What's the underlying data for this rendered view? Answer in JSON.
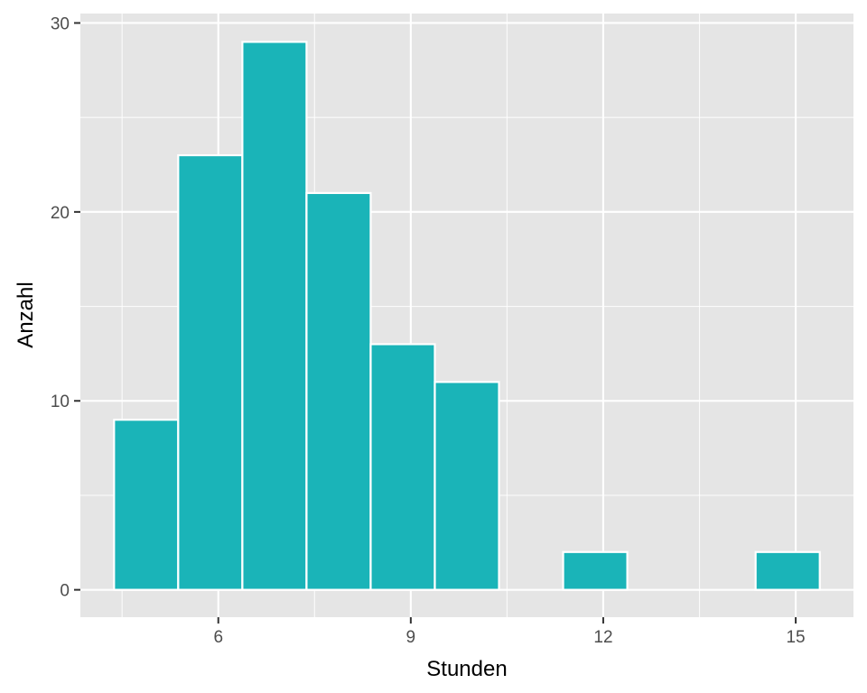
{
  "chart_data": {
    "type": "bar",
    "subtype": "histogram",
    "title": "",
    "xlabel": "Stunden",
    "ylabel": "Anzahl",
    "bin_width": 1,
    "bins": [
      {
        "x_start": 4.375,
        "x_end": 5.375,
        "count": 9
      },
      {
        "x_start": 5.375,
        "x_end": 6.375,
        "count": 23
      },
      {
        "x_start": 6.375,
        "x_end": 7.375,
        "count": 29
      },
      {
        "x_start": 7.375,
        "x_end": 8.375,
        "count": 21
      },
      {
        "x_start": 8.375,
        "x_end": 9.375,
        "count": 13
      },
      {
        "x_start": 9.375,
        "x_end": 10.375,
        "count": 11
      },
      {
        "x_start": 10.375,
        "x_end": 11.375,
        "count": 0
      },
      {
        "x_start": 11.375,
        "x_end": 12.375,
        "count": 2
      },
      {
        "x_start": 12.375,
        "x_end": 13.375,
        "count": 0
      },
      {
        "x_start": 13.375,
        "x_end": 14.375,
        "count": 0
      },
      {
        "x_start": 14.375,
        "x_end": 15.375,
        "count": 2
      }
    ],
    "xlim": [
      3.85,
      15.9
    ],
    "ylim": [
      -1.45,
      30.5
    ],
    "x_ticks": [
      6,
      9,
      12,
      15
    ],
    "x_tick_labels": [
      "6",
      "9",
      "12",
      "15"
    ],
    "x_minor_ticks": [
      4.5,
      7.5,
      10.5,
      13.5
    ],
    "y_ticks": [
      0,
      10,
      20,
      30
    ],
    "y_tick_labels": [
      "0",
      "10",
      "20",
      "30"
    ],
    "y_minor_ticks": [
      5,
      15,
      25
    ],
    "grid": true,
    "legend": "none",
    "colors": {
      "bar_fill": "#1ab4b8",
      "bar_outline": "#ffffff",
      "panel_background": "#e5e5e5",
      "grid": "#ffffff",
      "tick_mark": "#333333",
      "tick_label": "#4d4d4d"
    }
  }
}
